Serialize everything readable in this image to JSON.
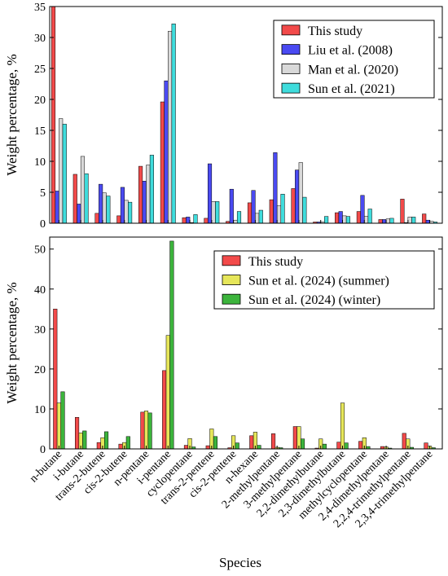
{
  "xlabel_shared": "Species",
  "categories": [
    "n-butane",
    "i-butane",
    "trans-2-butene",
    "cis-2-butene",
    "n-pentane",
    "i-pentane",
    "cyclopentane",
    "trans-2-pentene",
    "cis-2-pentene",
    "n-hexane",
    "2-methylpentane",
    "3-methylpentane",
    "2,2-dimethylbutane",
    "2,3-dimethylbutane",
    "methylcyclopentane",
    "2,4-dimethylpentane",
    "2,2,4-trimethylpentane",
    "2,3,4-trimethylpentane"
  ],
  "chart_data": [
    {
      "type": "bar",
      "title": "",
      "xlabel": "",
      "ylabel": "Weight percentage, %",
      "ylim": [
        0,
        35
      ],
      "yticks": [
        0,
        5,
        10,
        15,
        20,
        25,
        30,
        35
      ],
      "legend_position": "top-right",
      "categories": [
        "n-butane",
        "i-butane",
        "trans-2-butene",
        "cis-2-butene",
        "n-pentane",
        "i-pentane",
        "cyclopentane",
        "trans-2-pentene",
        "cis-2-pentene",
        "n-hexane",
        "2-methylpentane",
        "3-methylpentane",
        "2,2-dimethylbutane",
        "2,3-dimethylbutane",
        "methylcyclopentane",
        "2,4-dimethylpentane",
        "2,2,4-trimethylpentane",
        "2,3,4-trimethylpentane"
      ],
      "series": [
        {
          "name": "This study",
          "color": "#f24a4a",
          "values": [
            35.0,
            7.9,
            1.6,
            1.2,
            9.2,
            19.6,
            0.9,
            0.8,
            0.3,
            3.3,
            3.8,
            5.6,
            0.2,
            1.7,
            1.9,
            0.6,
            3.9,
            1.5
          ]
        },
        {
          "name": "Liu et al. (2008)",
          "color": "#4a4af2",
          "values": [
            5.2,
            3.1,
            6.3,
            5.8,
            6.8,
            23.0,
            1.0,
            9.6,
            5.5,
            5.3,
            11.4,
            8.6,
            0.2,
            1.9,
            4.5,
            0.6,
            0.1,
            0.5
          ]
        },
        {
          "name": "Man et al. (2020)",
          "color": "#d9d9d9",
          "values": [
            16.9,
            10.8,
            4.9,
            3.7,
            9.4,
            31.0,
            0.1,
            3.5,
            0.5,
            1.6,
            2.8,
            9.8,
            0.2,
            1.2,
            1.1,
            0.7,
            1.0,
            0.3
          ]
        },
        {
          "name": "Sun et al. (2021)",
          "color": "#3fdcdc",
          "values": [
            16.0,
            8.0,
            4.4,
            3.4,
            11.0,
            32.2,
            1.4,
            3.5,
            1.9,
            2.1,
            4.7,
            4.2,
            1.1,
            1.1,
            2.3,
            0.8,
            1.0,
            0.2
          ]
        }
      ]
    },
    {
      "type": "bar",
      "title": "",
      "xlabel": "Species",
      "ylabel": "Weight percentage, %",
      "ylim": [
        0,
        53
      ],
      "yticks": [
        0,
        10,
        20,
        30,
        40,
        50
      ],
      "legend_position": "top-right",
      "categories": [
        "n-butane",
        "i-butane",
        "trans-2-butene",
        "cis-2-butene",
        "n-pentane",
        "i-pentane",
        "cyclopentane",
        "trans-2-pentene",
        "cis-2-pentene",
        "n-hexane",
        "2-methylpentane",
        "3-methylpentane",
        "2,2-dimethylbutane",
        "2,3-dimethylbutane",
        "methylcyclopentane",
        "2,4-dimethylpentane",
        "2,2,4-trimethylpentane",
        "2,3,4-trimethylpentane"
      ],
      "series": [
        {
          "name": "This study",
          "color": "#f24a4a",
          "values": [
            35.0,
            7.9,
            1.6,
            1.2,
            9.2,
            19.6,
            0.9,
            0.8,
            0.3,
            3.3,
            3.8,
            5.6,
            0.2,
            1.7,
            1.9,
            0.6,
            3.9,
            1.5
          ]
        },
        {
          "name": "Sun et al. (2024) (summer)",
          "color": "#e6e65a",
          "values": [
            11.5,
            4.0,
            2.8,
            1.6,
            9.5,
            28.4,
            2.6,
            5.0,
            3.3,
            4.2,
            0.4,
            5.6,
            2.5,
            11.5,
            2.8,
            0.5,
            2.5,
            0.7
          ]
        },
        {
          "name": "Sun et al. (2024) (winter)",
          "color": "#3cb43c",
          "values": [
            14.3,
            4.5,
            4.3,
            3.1,
            9.0,
            52.0,
            0.5,
            3.1,
            1.5,
            0.9,
            0.3,
            2.5,
            1.2,
            1.5,
            0.6,
            0.2,
            0.4,
            0.3
          ]
        }
      ]
    }
  ]
}
